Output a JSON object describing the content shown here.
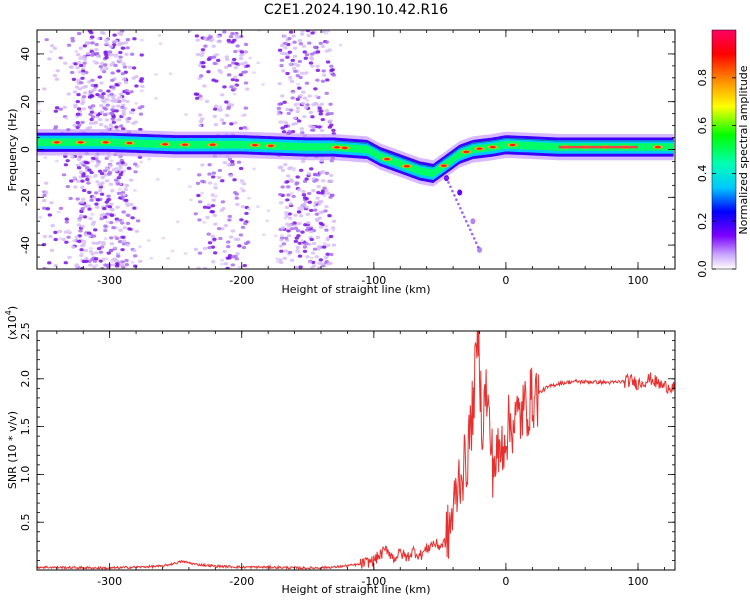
{
  "title": "C2E1.2024.190.10.42.R16",
  "colors": {
    "snr_line": "#e8302e",
    "spectrum_scatter": "#8a2be2",
    "frame": "#000000"
  },
  "chart_data": [
    {
      "type": "heatmap",
      "xlabel": "Height of straight line (km)",
      "ylabel": "Frequency (Hz)",
      "xlim": [
        -355,
        128
      ],
      "ylim": [
        -50,
        50
      ],
      "xticks": [
        -300,
        -200,
        -100,
        0,
        100
      ],
      "xtick_labels": [
        "-300",
        "-200",
        "-100",
        "0",
        "100"
      ],
      "yticks": [
        -40,
        -20,
        0,
        20,
        40
      ],
      "ytick_labels": [
        "-40",
        "-20",
        "0",
        "20",
        "40"
      ],
      "colorbar": {
        "label": "Normalized spectral amplitude",
        "range": [
          0,
          1
        ],
        "colormap": "rainbow",
        "ticks": [
          0.0,
          0.2,
          0.4,
          0.6,
          0.8
        ],
        "tick_labels": [
          "0.0",
          "0.2",
          "0.4",
          "0.6",
          "0.8"
        ]
      },
      "main_band": [
        {
          "x": -355,
          "f": 3
        },
        {
          "x": -300,
          "f": 3
        },
        {
          "x": -250,
          "f": 2
        },
        {
          "x": -200,
          "f": 2
        },
        {
          "x": -150,
          "f": 1
        },
        {
          "x": -130,
          "f": 1
        },
        {
          "x": -105,
          "f": 0
        },
        {
          "x": -95,
          "f": -3
        },
        {
          "x": -80,
          "f": -6
        },
        {
          "x": -65,
          "f": -9
        },
        {
          "x": -55,
          "f": -10
        },
        {
          "x": -45,
          "f": -6
        },
        {
          "x": -35,
          "f": -2
        },
        {
          "x": -25,
          "f": 0
        },
        {
          "x": -10,
          "f": 1
        },
        {
          "x": 0,
          "f": 2
        },
        {
          "x": 40,
          "f": 1
        },
        {
          "x": 80,
          "f": 1
        },
        {
          "x": 128,
          "f": 1
        }
      ],
      "scatter_columns": [
        {
          "x_range": [
            -350,
            -275
          ],
          "density": "medium"
        },
        {
          "x_range": [
            -325,
            -285
          ],
          "density": "high"
        },
        {
          "x_range": [
            -235,
            -195
          ],
          "density": "medium"
        },
        {
          "x_range": [
            -172,
            -130
          ],
          "density": "high"
        }
      ],
      "side_branch": [
        {
          "x": -45,
          "f": -12
        },
        {
          "x": -35,
          "f": -18
        },
        {
          "x": -25,
          "f": -30
        },
        {
          "x": -20,
          "f": -42
        }
      ]
    },
    {
      "type": "line",
      "xlabel": "Height of straight line (km)",
      "ylabel": "SNR (10 * v/v)",
      "y_multiplier_label": "(x10",
      "y_multiplier_exp": "4",
      "xlim": [
        -355,
        128
      ],
      "ylim": [
        0,
        2.5
      ],
      "xticks": [
        -300,
        -200,
        -100,
        0,
        100
      ],
      "xtick_labels": [
        "-300",
        "-200",
        "-100",
        "0",
        "100"
      ],
      "yticks": [
        0.5,
        1.0,
        1.5,
        2.0,
        2.5
      ],
      "ytick_labels": [
        "0.5",
        "1.0",
        "1.5",
        "2.0",
        "2.5"
      ],
      "series": [
        {
          "x": [
            -355,
            -300,
            -260,
            -245,
            -235,
            -220,
            -200,
            -180,
            -150,
            -130,
            -110,
            -100,
            -95,
            -90,
            -85,
            -80,
            -75,
            -70,
            -65,
            -60,
            -55,
            -50,
            -45,
            -40,
            -35,
            -30,
            -25,
            -21,
            -18,
            -15,
            -10,
            -5,
            0,
            5,
            10,
            15,
            20,
            25,
            30,
            35,
            40,
            50,
            60,
            80,
            95,
            100,
            110,
            115,
            120,
            128
          ],
          "y": [
            0.03,
            0.02,
            0.04,
            0.09,
            0.06,
            0.04,
            0.03,
            0.03,
            0.02,
            0.03,
            0.06,
            0.1,
            0.16,
            0.22,
            0.12,
            0.18,
            0.13,
            0.2,
            0.15,
            0.22,
            0.28,
            0.25,
            0.3,
            0.6,
            1.0,
            1.1,
            1.7,
            2.5,
            1.5,
            1.9,
            1.1,
            1.2,
            1.45,
            1.55,
            1.6,
            1.7,
            1.8,
            1.85,
            1.9,
            1.93,
            1.95,
            1.97,
            1.97,
            1.96,
            1.98,
            1.95,
            2.0,
            1.95,
            1.92,
            1.92
          ]
        }
      ]
    }
  ]
}
